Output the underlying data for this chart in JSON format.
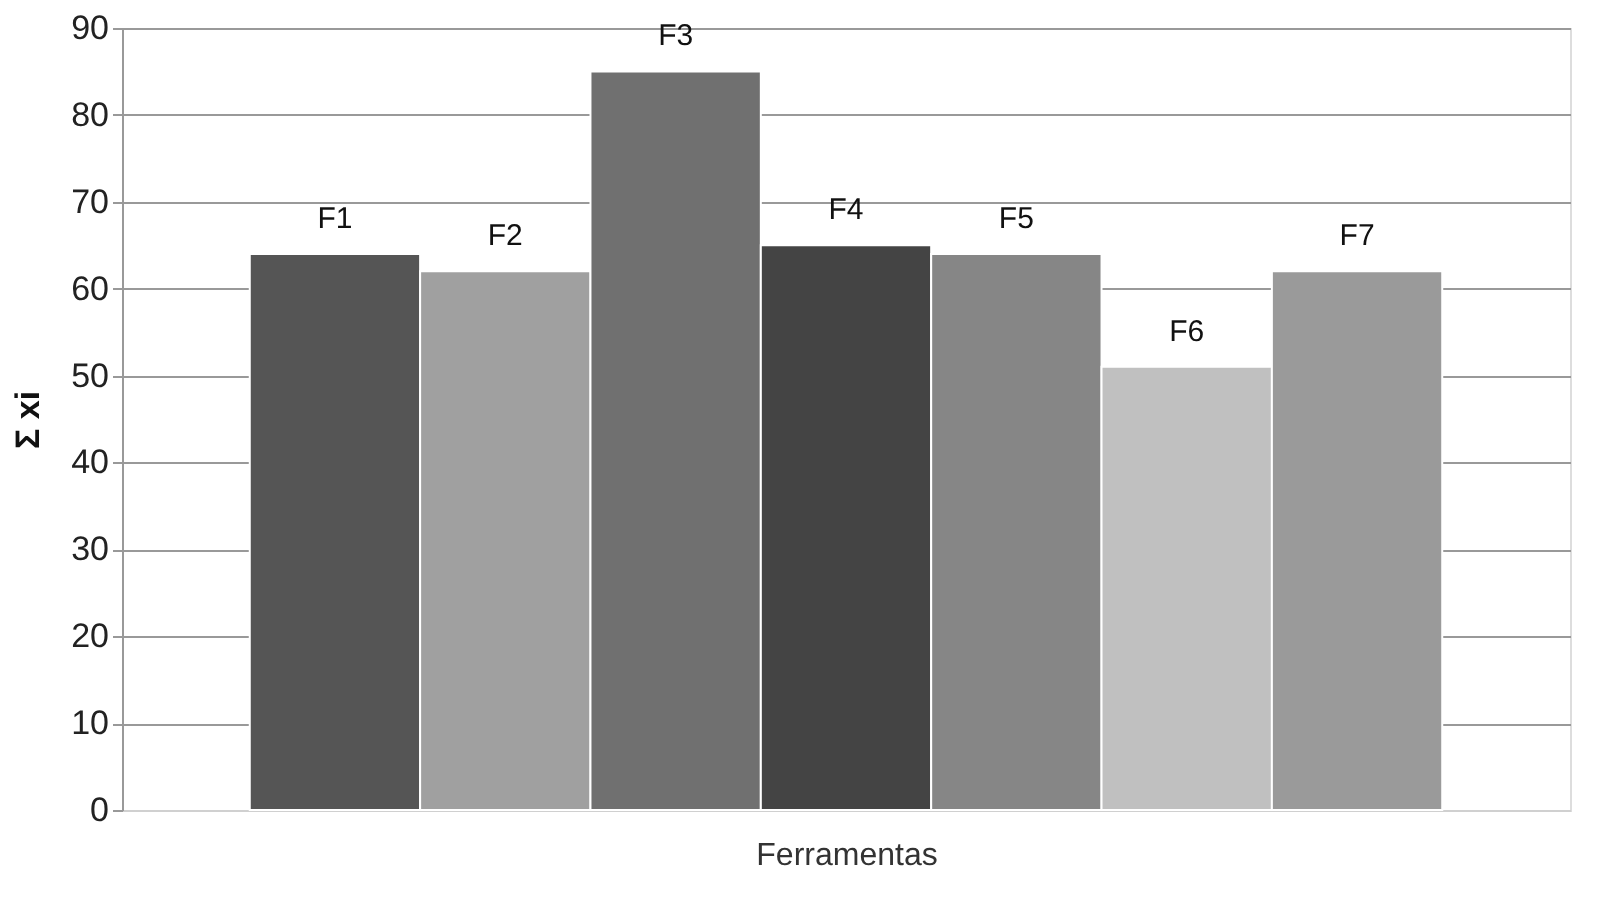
{
  "chart_data": {
    "type": "bar",
    "xlabel": "Ferramentas",
    "ylabel": "Σ xi",
    "categories": [
      "F1",
      "F2",
      "F3",
      "F4",
      "F5",
      "F6",
      "F7"
    ],
    "values": [
      64,
      62,
      85,
      65,
      64,
      51,
      62
    ],
    "colors": [
      "#555555",
      "#a0a0a0",
      "#707070",
      "#444444",
      "#868686",
      "#c0c0c0",
      "#9a9a9a"
    ],
    "ylim": [
      0,
      90
    ],
    "yticks": [
      0,
      10,
      20,
      30,
      40,
      50,
      60,
      70,
      80,
      90
    ],
    "grid": "y",
    "legend": false,
    "tick_labels": "y"
  }
}
